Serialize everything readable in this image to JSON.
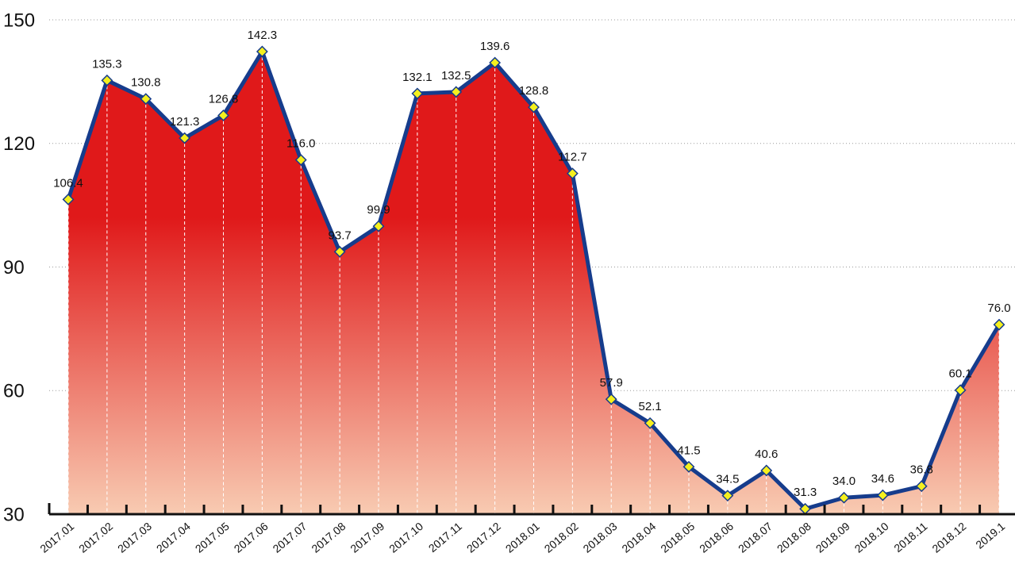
{
  "chart_data": {
    "type": "area",
    "categories": [
      "2017.01",
      "2017.02",
      "2017.03",
      "2017.04",
      "2017.05",
      "2017.06",
      "2017.07",
      "2017.08",
      "2017.09",
      "2017.10",
      "2017.11",
      "2017.12",
      "2018.01",
      "2018.02",
      "2018.03",
      "2018.04",
      "2018.05",
      "2018.06",
      "2018.07",
      "2018.08",
      "2018.09",
      "2018.10",
      "2018.11",
      "2018.12",
      "2019.1"
    ],
    "values": [
      106.4,
      135.3,
      130.8,
      121.3,
      126.8,
      142.3,
      116.0,
      93.7,
      99.9,
      132.1,
      132.5,
      139.6,
      128.8,
      112.7,
      57.9,
      52.1,
      41.5,
      34.5,
      40.6,
      31.3,
      34.0,
      34.6,
      36.8,
      60.1,
      76.0
    ],
    "value_labels": [
      "106.4",
      "135.3",
      "130.8",
      "121.3",
      "126.8",
      "142.3",
      "116.0",
      "93.7",
      "99.9",
      "132.1",
      "132.5",
      "139.6",
      "128.8",
      "112.7",
      "57.9",
      "52.1",
      "41.5",
      "34.5",
      "40.6",
      "31.3",
      "34.0",
      "34.6",
      "36.8",
      "60.1",
      "76.0"
    ],
    "color": "#163c8c",
    "marker_color": "#f5f01e",
    "ylim": [
      30,
      150
    ],
    "yticks": [
      30,
      60,
      90,
      120,
      150
    ],
    "grid": true
  }
}
